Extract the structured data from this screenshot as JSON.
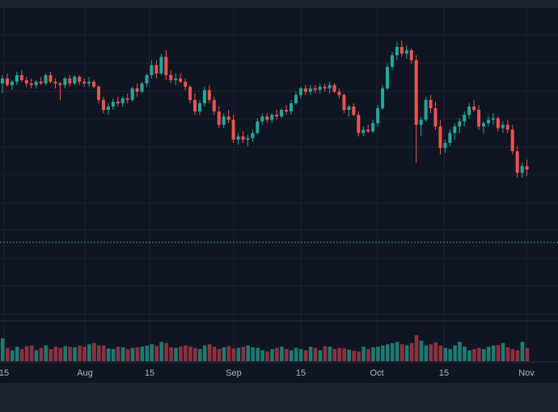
{
  "chart_data": {
    "type": "candlestick",
    "title": "",
    "x_axis_tick_labels": [
      "15",
      "Aug",
      "15",
      "Sep",
      "15",
      "Oct",
      "15",
      "Nov"
    ],
    "grid": true,
    "volume_panel": true,
    "colors": {
      "background": "#0f1622",
      "grid": "#1c2230",
      "up": "#26a69a",
      "down": "#ef5350",
      "volume_up": "#1f7a72",
      "volume_down": "#8f3140",
      "axis_text": "#b2b5be",
      "reference_line": "#26a69a"
    },
    "candles": [
      {
        "o": 98,
        "h": 103,
        "l": 92,
        "c": 101
      },
      {
        "o": 101,
        "h": 104,
        "l": 96,
        "c": 97
      },
      {
        "o": 97,
        "h": 100,
        "l": 94,
        "c": 99
      },
      {
        "o": 99,
        "h": 105,
        "l": 97,
        "c": 103
      },
      {
        "o": 103,
        "h": 106,
        "l": 99,
        "c": 100
      },
      {
        "o": 100,
        "h": 102,
        "l": 96,
        "c": 98
      },
      {
        "o": 98,
        "h": 101,
        "l": 95,
        "c": 97
      },
      {
        "o": 97,
        "h": 100,
        "l": 95,
        "c": 99
      },
      {
        "o": 99,
        "h": 102,
        "l": 97,
        "c": 98
      },
      {
        "o": 98,
        "h": 104,
        "l": 97,
        "c": 103
      },
      {
        "o": 103,
        "h": 105,
        "l": 98,
        "c": 99
      },
      {
        "o": 99,
        "h": 101,
        "l": 95,
        "c": 98
      },
      {
        "o": 98,
        "h": 99,
        "l": 88,
        "c": 97
      },
      {
        "o": 97,
        "h": 102,
        "l": 95,
        "c": 101
      },
      {
        "o": 101,
        "h": 103,
        "l": 96,
        "c": 98
      },
      {
        "o": 98,
        "h": 103,
        "l": 97,
        "c": 102
      },
      {
        "o": 102,
        "h": 103,
        "l": 97,
        "c": 99
      },
      {
        "o": 99,
        "h": 101,
        "l": 96,
        "c": 98
      },
      {
        "o": 98,
        "h": 102,
        "l": 96,
        "c": 99
      },
      {
        "o": 99,
        "h": 100,
        "l": 95,
        "c": 96
      },
      {
        "o": 96,
        "h": 97,
        "l": 86,
        "c": 88
      },
      {
        "o": 88,
        "h": 90,
        "l": 80,
        "c": 82
      },
      {
        "o": 82,
        "h": 86,
        "l": 79,
        "c": 84
      },
      {
        "o": 84,
        "h": 89,
        "l": 82,
        "c": 87
      },
      {
        "o": 87,
        "h": 90,
        "l": 84,
        "c": 86
      },
      {
        "o": 86,
        "h": 90,
        "l": 84,
        "c": 89
      },
      {
        "o": 89,
        "h": 92,
        "l": 86,
        "c": 88
      },
      {
        "o": 88,
        "h": 96,
        "l": 87,
        "c": 95
      },
      {
        "o": 95,
        "h": 98,
        "l": 90,
        "c": 93
      },
      {
        "o": 93,
        "h": 99,
        "l": 92,
        "c": 98
      },
      {
        "o": 98,
        "h": 104,
        "l": 96,
        "c": 103
      },
      {
        "o": 103,
        "h": 112,
        "l": 101,
        "c": 109
      },
      {
        "o": 109,
        "h": 112,
        "l": 101,
        "c": 104
      },
      {
        "o": 104,
        "h": 116,
        "l": 103,
        "c": 114
      },
      {
        "o": 114,
        "h": 118,
        "l": 100,
        "c": 103
      },
      {
        "o": 103,
        "h": 106,
        "l": 98,
        "c": 100
      },
      {
        "o": 100,
        "h": 104,
        "l": 97,
        "c": 101
      },
      {
        "o": 101,
        "h": 104,
        "l": 98,
        "c": 99
      },
      {
        "o": 99,
        "h": 101,
        "l": 94,
        "c": 96
      },
      {
        "o": 96,
        "h": 97,
        "l": 86,
        "c": 88
      },
      {
        "o": 88,
        "h": 92,
        "l": 79,
        "c": 81
      },
      {
        "o": 81,
        "h": 88,
        "l": 79,
        "c": 86
      },
      {
        "o": 86,
        "h": 96,
        "l": 84,
        "c": 94
      },
      {
        "o": 94,
        "h": 97,
        "l": 86,
        "c": 88
      },
      {
        "o": 88,
        "h": 90,
        "l": 79,
        "c": 81
      },
      {
        "o": 81,
        "h": 84,
        "l": 71,
        "c": 73
      },
      {
        "o": 73,
        "h": 80,
        "l": 71,
        "c": 78
      },
      {
        "o": 78,
        "h": 82,
        "l": 74,
        "c": 76
      },
      {
        "o": 76,
        "h": 79,
        "l": 62,
        "c": 64
      },
      {
        "o": 64,
        "h": 68,
        "l": 61,
        "c": 66
      },
      {
        "o": 66,
        "h": 69,
        "l": 62,
        "c": 64
      },
      {
        "o": 64,
        "h": 67,
        "l": 60,
        "c": 65
      },
      {
        "o": 65,
        "h": 70,
        "l": 63,
        "c": 68
      },
      {
        "o": 68,
        "h": 77,
        "l": 67,
        "c": 75
      },
      {
        "o": 75,
        "h": 80,
        "l": 73,
        "c": 78
      },
      {
        "o": 78,
        "h": 80,
        "l": 74,
        "c": 76
      },
      {
        "o": 76,
        "h": 80,
        "l": 74,
        "c": 79
      },
      {
        "o": 79,
        "h": 82,
        "l": 76,
        "c": 78
      },
      {
        "o": 78,
        "h": 83,
        "l": 77,
        "c": 82
      },
      {
        "o": 82,
        "h": 85,
        "l": 79,
        "c": 81
      },
      {
        "o": 81,
        "h": 88,
        "l": 79,
        "c": 86
      },
      {
        "o": 86,
        "h": 93,
        "l": 85,
        "c": 91
      },
      {
        "o": 91,
        "h": 96,
        "l": 89,
        "c": 95
      },
      {
        "o": 95,
        "h": 97,
        "l": 91,
        "c": 93
      },
      {
        "o": 93,
        "h": 97,
        "l": 91,
        "c": 95
      },
      {
        "o": 95,
        "h": 97,
        "l": 92,
        "c": 94
      },
      {
        "o": 94,
        "h": 98,
        "l": 92,
        "c": 96
      },
      {
        "o": 96,
        "h": 98,
        "l": 93,
        "c": 95
      },
      {
        "o": 95,
        "h": 99,
        "l": 92,
        "c": 97
      },
      {
        "o": 97,
        "h": 98,
        "l": 92,
        "c": 93
      },
      {
        "o": 93,
        "h": 95,
        "l": 89,
        "c": 91
      },
      {
        "o": 91,
        "h": 92,
        "l": 80,
        "c": 82
      },
      {
        "o": 82,
        "h": 85,
        "l": 78,
        "c": 84
      },
      {
        "o": 84,
        "h": 86,
        "l": 78,
        "c": 79
      },
      {
        "o": 79,
        "h": 81,
        "l": 66,
        "c": 68
      },
      {
        "o": 68,
        "h": 72,
        "l": 66,
        "c": 70
      },
      {
        "o": 70,
        "h": 73,
        "l": 68,
        "c": 69
      },
      {
        "o": 69,
        "h": 76,
        "l": 68,
        "c": 74
      },
      {
        "o": 74,
        "h": 85,
        "l": 72,
        "c": 83
      },
      {
        "o": 83,
        "h": 97,
        "l": 82,
        "c": 95
      },
      {
        "o": 95,
        "h": 110,
        "l": 94,
        "c": 108
      },
      {
        "o": 108,
        "h": 117,
        "l": 106,
        "c": 115
      },
      {
        "o": 115,
        "h": 123,
        "l": 112,
        "c": 120
      },
      {
        "o": 120,
        "h": 124,
        "l": 114,
        "c": 116
      },
      {
        "o": 116,
        "h": 121,
        "l": 113,
        "c": 118
      },
      {
        "o": 118,
        "h": 119,
        "l": 110,
        "c": 112
      },
      {
        "o": 112,
        "h": 115,
        "l": 50,
        "c": 73
      },
      {
        "o": 73,
        "h": 78,
        "l": 66,
        "c": 76
      },
      {
        "o": 76,
        "h": 90,
        "l": 75,
        "c": 88
      },
      {
        "o": 88,
        "h": 91,
        "l": 80,
        "c": 83
      },
      {
        "o": 83,
        "h": 87,
        "l": 70,
        "c": 72
      },
      {
        "o": 72,
        "h": 76,
        "l": 55,
        "c": 59
      },
      {
        "o": 59,
        "h": 64,
        "l": 56,
        "c": 62
      },
      {
        "o": 62,
        "h": 70,
        "l": 60,
        "c": 68
      },
      {
        "o": 68,
        "h": 74,
        "l": 64,
        "c": 72
      },
      {
        "o": 72,
        "h": 77,
        "l": 68,
        "c": 75
      },
      {
        "o": 75,
        "h": 81,
        "l": 72,
        "c": 79
      },
      {
        "o": 79,
        "h": 86,
        "l": 77,
        "c": 84
      },
      {
        "o": 84,
        "h": 88,
        "l": 81,
        "c": 82
      },
      {
        "o": 82,
        "h": 85,
        "l": 70,
        "c": 72
      },
      {
        "o": 72,
        "h": 75,
        "l": 68,
        "c": 74
      },
      {
        "o": 74,
        "h": 78,
        "l": 72,
        "c": 76
      },
      {
        "o": 76,
        "h": 80,
        "l": 73,
        "c": 77
      },
      {
        "o": 77,
        "h": 78,
        "l": 69,
        "c": 71
      },
      {
        "o": 71,
        "h": 75,
        "l": 68,
        "c": 73
      },
      {
        "o": 73,
        "h": 76,
        "l": 68,
        "c": 70
      },
      {
        "o": 70,
        "h": 73,
        "l": 55,
        "c": 57
      },
      {
        "o": 57,
        "h": 60,
        "l": 41,
        "c": 44
      },
      {
        "o": 44,
        "h": 50,
        "l": 41,
        "c": 48
      },
      {
        "o": 48,
        "h": 52,
        "l": 42,
        "c": 46
      }
    ],
    "volume": [
      38,
      22,
      18,
      24,
      20,
      25,
      26,
      18,
      22,
      26,
      20,
      24,
      22,
      25,
      24,
      23,
      26,
      24,
      28,
      30,
      26,
      26,
      21,
      20,
      24,
      23,
      20,
      22,
      23,
      24,
      26,
      28,
      25,
      32,
      30,
      23,
      22,
      24,
      26,
      24,
      22,
      20,
      26,
      28,
      24,
      20,
      23,
      25,
      21,
      22,
      24,
      26,
      23,
      22,
      18,
      16,
      20,
      22,
      24,
      20,
      18,
      22,
      20,
      18,
      24,
      22,
      18,
      25,
      24,
      20,
      22,
      21,
      19,
      17,
      16,
      24,
      20,
      23,
      24,
      26,
      28,
      30,
      32,
      28,
      26,
      30,
      43,
      34,
      26,
      28,
      31,
      26,
      22,
      20,
      26,
      32,
      24,
      18,
      20,
      22,
      20,
      24,
      26,
      27,
      30,
      23,
      20,
      18,
      32,
      22
    ]
  }
}
